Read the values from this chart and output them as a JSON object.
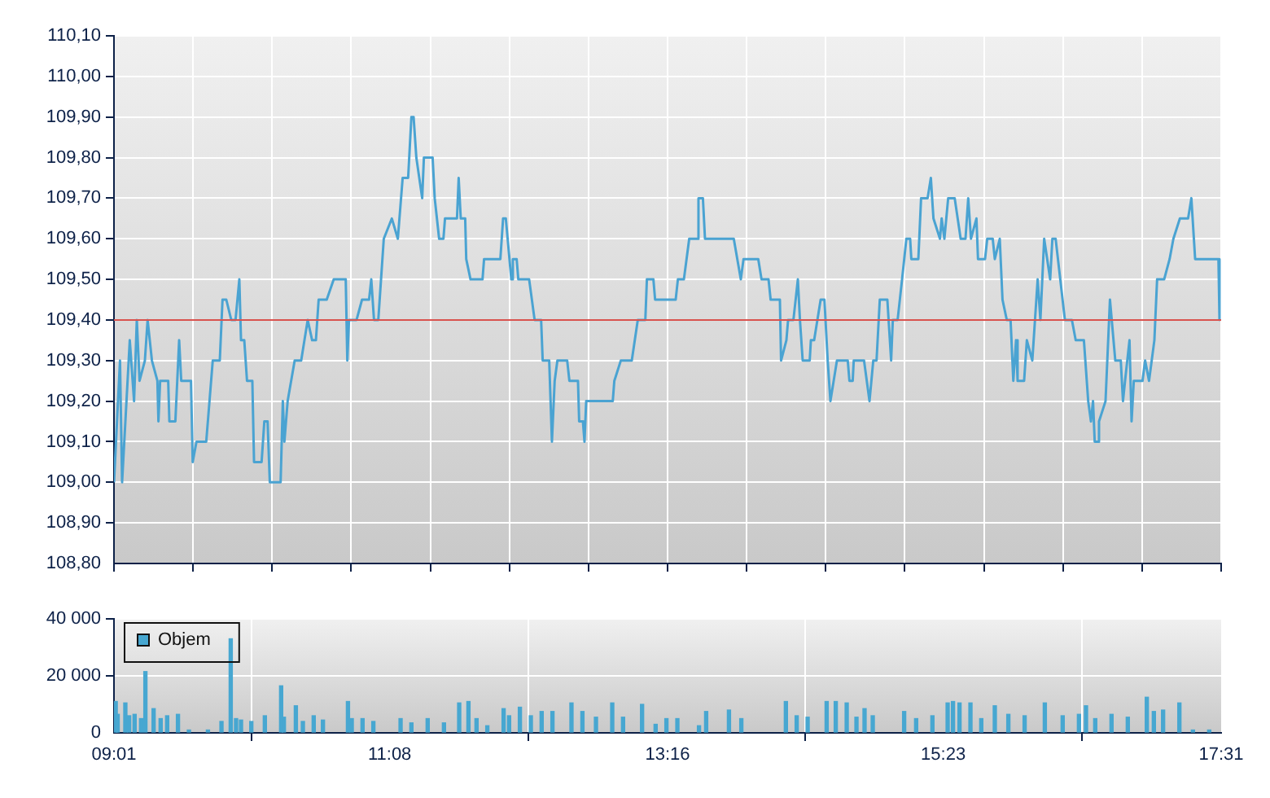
{
  "chart_data": [
    {
      "type": "line",
      "xlim": [
        9.0167,
        17.5167
      ],
      "ylim": [
        108.8,
        110.1
      ],
      "xticks": [
        {
          "value": 9.0167,
          "label": null
        },
        {
          "value": 9.6238,
          "label": null
        },
        {
          "value": 10.231,
          "label": null
        },
        {
          "value": 10.8381,
          "label": null
        },
        {
          "value": 11.4452,
          "label": null
        },
        {
          "value": 12.0524,
          "label": null
        },
        {
          "value": 12.6595,
          "label": null
        },
        {
          "value": 13.2667,
          "label": null
        },
        {
          "value": 13.8738,
          "label": null
        },
        {
          "value": 14.481,
          "label": null
        },
        {
          "value": 15.0881,
          "label": null
        },
        {
          "value": 15.6952,
          "label": null
        },
        {
          "value": 16.3024,
          "label": null
        },
        {
          "value": 16.9095,
          "label": null
        },
        {
          "value": 17.5167,
          "label": null
        }
      ],
      "yticks": [
        {
          "value": 108.8,
          "label": "108,80"
        },
        {
          "value": 108.9,
          "label": "108,90"
        },
        {
          "value": 109.0,
          "label": "109,00"
        },
        {
          "value": 109.1,
          "label": "109,10"
        },
        {
          "value": 109.2,
          "label": "109,20"
        },
        {
          "value": 109.3,
          "label": "109,30"
        },
        {
          "value": 109.4,
          "label": "109,40"
        },
        {
          "value": 109.5,
          "label": "109,50"
        },
        {
          "value": 109.6,
          "label": "109,60"
        },
        {
          "value": 109.7,
          "label": "109,70"
        },
        {
          "value": 109.8,
          "label": "109,80"
        },
        {
          "value": 109.9,
          "label": "109,90"
        },
        {
          "value": 110.0,
          "label": "110,00"
        },
        {
          "value": 110.1,
          "label": "110,10"
        }
      ],
      "tick_labels": "y",
      "grid": true,
      "marker": "none",
      "line_style": "solid",
      "ref_lines": [
        {
          "axis": "y",
          "value": 109.4,
          "color": "#d9534f"
        }
      ],
      "x": [
        9.017,
        9.063,
        9.079,
        9.138,
        9.171,
        9.192,
        9.213,
        9.254,
        9.275,
        9.308,
        9.35,
        9.358,
        9.371,
        9.433,
        9.442,
        9.488,
        9.517,
        9.533,
        9.608,
        9.621,
        9.65,
        9.725,
        9.775,
        9.829,
        9.85,
        9.879,
        9.917,
        9.95,
        9.979,
        9.992,
        10.017,
        10.038,
        10.079,
        10.092,
        10.15,
        10.171,
        10.196,
        10.213,
        10.296,
        10.313,
        10.325,
        10.35,
        10.404,
        10.454,
        10.479,
        10.504,
        10.538,
        10.567,
        10.588,
        10.65,
        10.704,
        10.796,
        10.808,
        10.821,
        10.879,
        10.921,
        10.975,
        10.992,
        11.013,
        11.046,
        11.088,
        11.15,
        11.196,
        11.233,
        11.275,
        11.3,
        11.317,
        11.338,
        11.383,
        11.396,
        11.463,
        11.479,
        11.513,
        11.546,
        11.558,
        11.65,
        11.663,
        11.679,
        11.713,
        11.721,
        11.754,
        11.846,
        11.858,
        11.983,
        12.004,
        12.025,
        12.067,
        12.079,
        12.108,
        12.121,
        12.204,
        12.246,
        12.296,
        12.308,
        12.358,
        12.379,
        12.4,
        12.421,
        12.496,
        12.513,
        12.579,
        12.588,
        12.617,
        12.629,
        12.642,
        12.846,
        12.858,
        12.908,
        12.992,
        13.038,
        13.096,
        13.108,
        13.158,
        13.171,
        13.329,
        13.346,
        13.392,
        13.433,
        13.492,
        13.504,
        13.538,
        13.554,
        13.775,
        13.829,
        13.85,
        13.963,
        13.988,
        14.042,
        14.058,
        14.129,
        14.138,
        14.179,
        14.192,
        14.233,
        14.267,
        14.283,
        14.304,
        14.358,
        14.367,
        14.392,
        14.442,
        14.471,
        14.496,
        14.517,
        14.567,
        14.65,
        14.663,
        14.688,
        14.696,
        14.775,
        14.817,
        14.846,
        14.871,
        14.896,
        14.954,
        14.983,
        14.996,
        15.033,
        15.067,
        15.1,
        15.129,
        15.138,
        15.192,
        15.213,
        15.263,
        15.288,
        15.308,
        15.358,
        15.371,
        15.392,
        15.421,
        15.471,
        15.517,
        15.554,
        15.575,
        15.596,
        15.638,
        15.65,
        15.704,
        15.721,
        15.763,
        15.779,
        15.817,
        15.838,
        15.871,
        15.9,
        15.921,
        15.942,
        15.954,
        16.004,
        16.025,
        16.067,
        16.108,
        16.129,
        16.158,
        16.204,
        16.221,
        16.246,
        16.317,
        16.371,
        16.4,
        16.463,
        16.496,
        16.517,
        16.533,
        16.546,
        16.567,
        16.579,
        16.629,
        16.663,
        16.704,
        16.746,
        16.763,
        16.779,
        16.813,
        16.829,
        16.846,
        16.913,
        16.933,
        16.963,
        17.004,
        17.025,
        17.079,
        17.121,
        17.15,
        17.2,
        17.263,
        17.288,
        17.317,
        17.496,
        17.504
      ],
      "series": [
        {
          "color": "#4aa3d2",
          "values": [
            109.0,
            109.3,
            109.0,
            109.35,
            109.2,
            109.4,
            109.25,
            109.3,
            109.4,
            109.3,
            109.25,
            109.15,
            109.25,
            109.25,
            109.15,
            109.15,
            109.35,
            109.25,
            109.25,
            109.05,
            109.1,
            109.1,
            109.3,
            109.3,
            109.45,
            109.45,
            109.4,
            109.4,
            109.5,
            109.35,
            109.35,
            109.25,
            109.25,
            109.05,
            109.05,
            109.15,
            109.15,
            109.0,
            109.0,
            109.2,
            109.1,
            109.2,
            109.3,
            109.3,
            109.35,
            109.4,
            109.35,
            109.35,
            109.45,
            109.45,
            109.5,
            109.5,
            109.3,
            109.4,
            109.4,
            109.45,
            109.45,
            109.5,
            109.4,
            109.4,
            109.6,
            109.65,
            109.6,
            109.75,
            109.75,
            109.9,
            109.9,
            109.8,
            109.7,
            109.8,
            109.8,
            109.7,
            109.6,
            109.6,
            109.65,
            109.65,
            109.75,
            109.65,
            109.65,
            109.55,
            109.5,
            109.5,
            109.55,
            109.55,
            109.65,
            109.65,
            109.5,
            109.55,
            109.55,
            109.5,
            109.5,
            109.4,
            109.4,
            109.3,
            109.3,
            109.1,
            109.25,
            109.3,
            109.3,
            109.25,
            109.25,
            109.15,
            109.15,
            109.1,
            109.2,
            109.2,
            109.25,
            109.3,
            109.3,
            109.4,
            109.4,
            109.5,
            109.5,
            109.45,
            109.45,
            109.5,
            109.5,
            109.6,
            109.6,
            109.7,
            109.7,
            109.6,
            109.6,
            109.5,
            109.55,
            109.55,
            109.5,
            109.5,
            109.45,
            109.45,
            109.3,
            109.35,
            109.4,
            109.4,
            109.5,
            109.4,
            109.3,
            109.3,
            109.35,
            109.35,
            109.45,
            109.45,
            109.3,
            109.2,
            109.3,
            109.3,
            109.25,
            109.25,
            109.3,
            109.3,
            109.2,
            109.3,
            109.3,
            109.45,
            109.45,
            109.3,
            109.4,
            109.4,
            109.5,
            109.6,
            109.6,
            109.55,
            109.55,
            109.7,
            109.7,
            109.75,
            109.65,
            109.6,
            109.65,
            109.6,
            109.7,
            109.7,
            109.6,
            109.6,
            109.7,
            109.6,
            109.65,
            109.55,
            109.55,
            109.6,
            109.6,
            109.55,
            109.6,
            109.45,
            109.4,
            109.4,
            109.25,
            109.35,
            109.25,
            109.25,
            109.35,
            109.3,
            109.5,
            109.4,
            109.6,
            109.5,
            109.6,
            109.6,
            109.4,
            109.4,
            109.35,
            109.35,
            109.2,
            109.15,
            109.2,
            109.1,
            109.1,
            109.15,
            109.2,
            109.45,
            109.3,
            109.3,
            109.2,
            109.25,
            109.35,
            109.15,
            109.25,
            109.25,
            109.3,
            109.25,
            109.35,
            109.5,
            109.5,
            109.55,
            109.6,
            109.65,
            109.65,
            109.7,
            109.55,
            109.55,
            109.4
          ]
        }
      ]
    },
    {
      "type": "bar",
      "xlim": [
        9.0167,
        17.5167
      ],
      "ylim": [
        0,
        40000
      ],
      "xticks": [
        {
          "value": 9.0167,
          "label": "09:01"
        },
        {
          "value": 11.1333,
          "label": "11:08"
        },
        {
          "value": 13.2667,
          "label": "13:16"
        },
        {
          "value": 15.3833,
          "label": "15:23"
        },
        {
          "value": 17.5167,
          "label": "17:31"
        }
      ],
      "yticks": [
        {
          "value": 0,
          "label": "0"
        },
        {
          "value": 20000,
          "label": "20 000"
        },
        {
          "value": 40000,
          "label": "40 000"
        }
      ],
      "grid": true,
      "legend": "top left",
      "x": [
        9.03,
        9.045,
        9.104,
        9.133,
        9.175,
        9.225,
        9.258,
        9.321,
        9.375,
        9.425,
        9.508,
        9.592,
        9.738,
        9.842,
        9.913,
        9.954,
        9.992,
        10.071,
        10.175,
        10.3,
        10.321,
        10.413,
        10.467,
        10.55,
        10.621,
        10.813,
        10.842,
        10.925,
        11.008,
        11.217,
        11.3,
        11.425,
        11.55,
        11.667,
        11.738,
        11.8,
        11.883,
        12.008,
        12.05,
        12.133,
        12.217,
        12.3,
        12.383,
        12.529,
        12.613,
        12.717,
        12.842,
        12.925,
        13.071,
        13.175,
        13.258,
        13.342,
        13.508,
        13.563,
        13.738,
        13.833,
        14.175,
        14.258,
        14.342,
        14.488,
        14.558,
        14.642,
        14.717,
        14.779,
        14.842,
        15.083,
        15.175,
        15.3,
        15.417,
        15.458,
        15.508,
        15.592,
        15.675,
        15.779,
        15.883,
        16.008,
        16.163,
        16.3,
        16.425,
        16.479,
        16.55,
        16.675,
        16.8,
        16.946,
        17.0,
        17.071,
        17.196,
        17.3,
        17.425
      ],
      "series": [
        {
          "name": "Objem",
          "color": "#47a7d1",
          "values": [
            11000,
            6500,
            10500,
            6000,
            6500,
            5000,
            21500,
            8500,
            5000,
            6000,
            6500,
            1000,
            1000,
            4000,
            33000,
            5000,
            4500,
            4000,
            6000,
            16500,
            5500,
            9500,
            4000,
            6000,
            4500,
            11000,
            5000,
            5000,
            4000,
            5000,
            3500,
            5000,
            3500,
            10500,
            11000,
            5000,
            2500,
            8500,
            6000,
            9000,
            6000,
            7500,
            7500,
            10500,
            7500,
            5500,
            10500,
            5500,
            10000,
            3000,
            5000,
            5000,
            2500,
            7500,
            8000,
            5000,
            11000,
            6000,
            5500,
            11000,
            11000,
            10500,
            5500,
            8500,
            6000,
            7500,
            5000,
            6000,
            10500,
            11000,
            10500,
            10500,
            5000,
            9500,
            6500,
            6000,
            10500,
            6000,
            6500,
            9500,
            5000,
            6500,
            5500,
            12500,
            7500,
            8000,
            10500,
            1000,
            1000
          ]
        }
      ]
    }
  ]
}
